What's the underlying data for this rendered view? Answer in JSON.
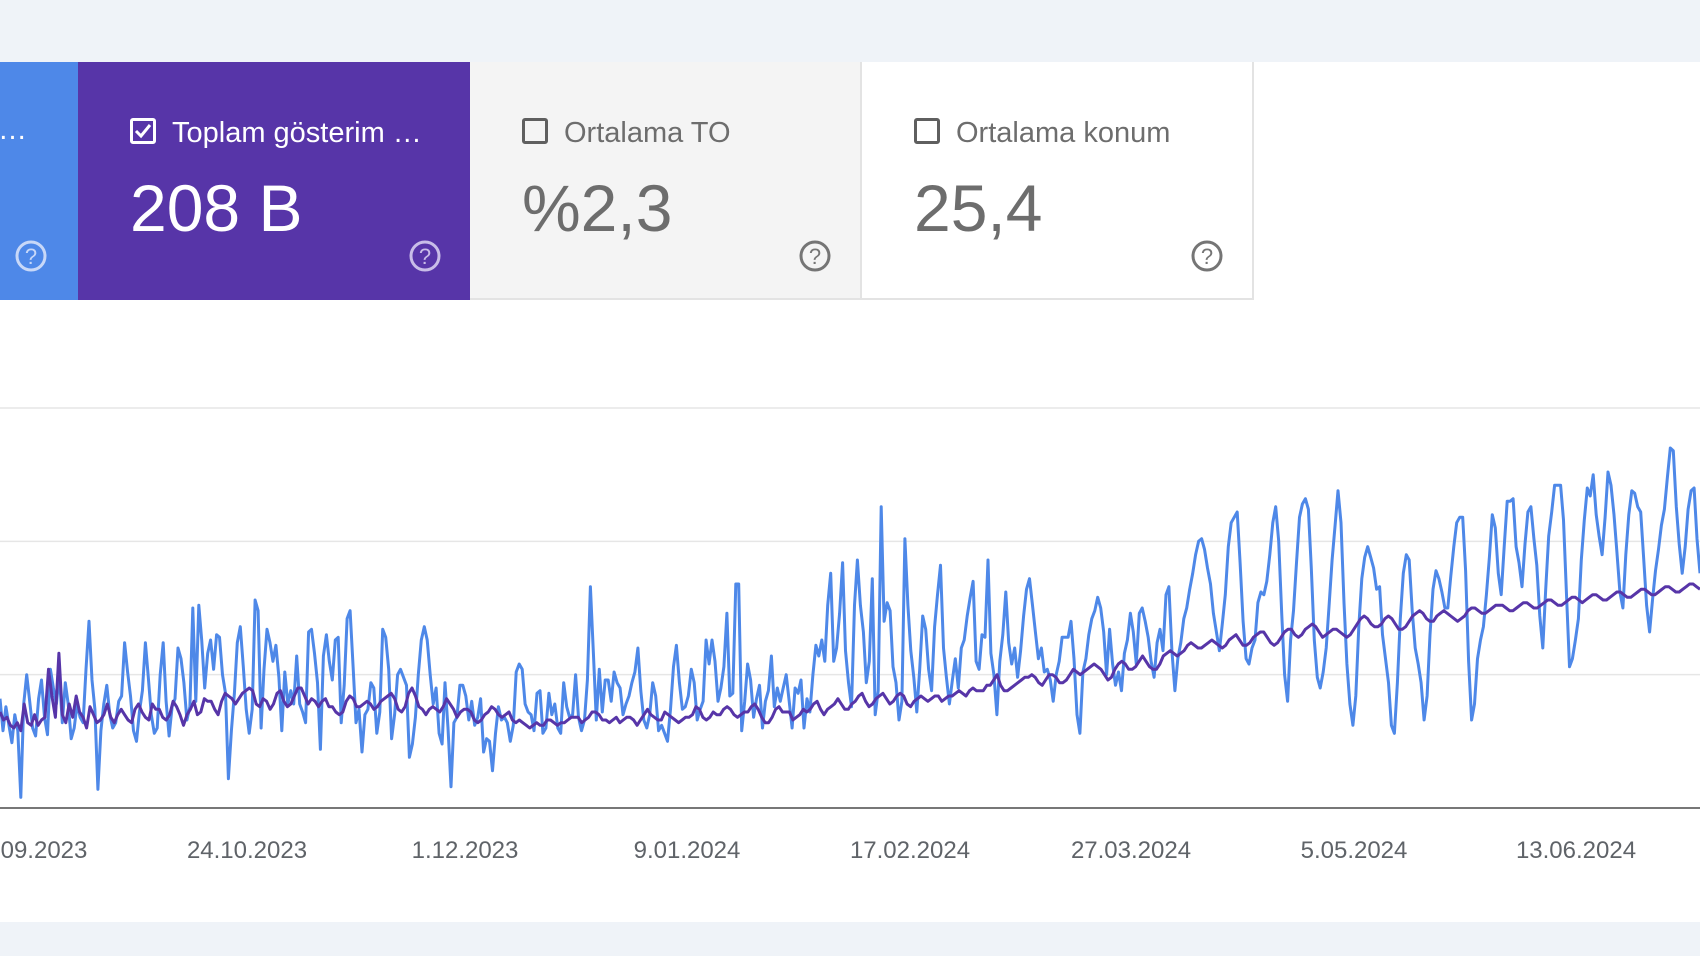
{
  "metrics": {
    "clicks": {
      "label": "…",
      "active": true,
      "color": "#4e88e8"
    },
    "impressions": {
      "label": "Toplam gösterim …",
      "value": "208 B",
      "checked": true,
      "color": "#5735a8"
    },
    "ctr": {
      "label": "Ortalama TO",
      "value": "%2,3",
      "checked": false
    },
    "position": {
      "label": "Ortalama konum",
      "value": "25,4",
      "checked": false
    }
  },
  "chart_data": {
    "type": "line",
    "x_tick_labels": [
      "09.2023",
      "24.10.2023",
      "1.12.2023",
      "9.01.2024",
      "17.02.2024",
      "27.03.2024",
      "5.05.2024",
      "13.06.2024"
    ],
    "y_range": [
      0,
      300
    ],
    "grid": true,
    "series": [
      {
        "color": "#4e88e8",
        "values": [
          82,
          58,
          76,
          62,
          49,
          70,
          58,
          8,
          78,
          100,
          80,
          60,
          54,
          82,
          96,
          68,
          55,
          104,
          90,
          78,
          100,
          64,
          94,
          78,
          52,
          60,
          78,
          68,
          64,
          104,
          140,
          96,
          74,
          14,
          58,
          78,
          92,
          70,
          60,
          64,
          80,
          84,
          124,
          102,
          84,
          58,
          50,
          72,
          88,
          124,
          98,
          70,
          56,
          60,
          100,
          124,
          80,
          54,
          76,
          82,
          120,
          112,
          94,
          66,
          76,
          150,
          80,
          152,
          126,
          90,
          116,
          126,
          104,
          130,
          128,
          100,
          86,
          22,
          58,
          86,
          124,
          136,
          106,
          74,
          56,
          74,
          156,
          148,
          60,
          104,
          134,
          124,
          110,
          122,
          98,
          58,
          102,
          78,
          88,
          78,
          114,
          78,
          72,
          64,
          132,
          134,
          116,
          94,
          44,
          114,
          130,
          110,
          96,
          126,
          128,
          64,
          92,
          142,
          148,
          106,
          64,
          74,
          42,
          70,
          74,
          94,
          90,
          56,
          72,
          134,
          128,
          104,
          52,
          70,
          100,
          104,
          98,
          92,
          38,
          48,
          68,
          100,
          126,
          136,
          126,
          100,
          78,
          90,
          56,
          48,
          94,
          60,
          16,
          64,
          68,
          92,
          92,
          84,
          66,
          80,
          62,
          68,
          82,
          42,
          52,
          50,
          28,
          56,
          76,
          66,
          68,
          64,
          50,
          62,
          102,
          108,
          104,
          78,
          72,
          70,
          58,
          86,
          88,
          56,
          60,
          86,
          70,
          78,
          60,
          56,
          94,
          76,
          68,
          70,
          100,
          68,
          58,
          66,
          96,
          166,
          116,
          66,
          104,
          72,
          96,
          96,
          80,
          102,
          94,
          90,
          70,
          78,
          84,
          94,
          102,
          120,
          88,
          66,
          60,
          70,
          94,
          84,
          58,
          62,
          56,
          50,
          74,
          106,
          122,
          94,
          74,
          76,
          84,
          104,
          94,
          66,
          74,
          80,
          126,
          108,
          126,
          110,
          80,
          90,
          106,
          146,
          84,
          86,
          168,
          168,
          58,
          80,
          108,
          96,
          68,
          82,
          92,
          60,
          80,
          88,
          114,
          76,
          90,
          80,
          90,
          100,
          80,
          60,
          90,
          86,
          96,
          60,
          82,
          72,
          100,
          122,
          114,
          126,
          110,
          152,
          176,
          110,
          120,
          146,
          184,
          118,
          94,
          76,
          152,
          186,
          152,
          132,
          94,
          110,
          172,
          70,
          88,
          226,
          140,
          154,
          148,
          106,
          94,
          66,
          80,
          202,
          152,
          118,
          98,
          72,
          104,
          144,
          134,
          104,
          88,
          136,
          160,
          182,
          120,
          98,
          78,
          96,
          112,
          90,
          120,
          126,
          144,
          158,
          170,
          110,
          104,
          130,
          128,
          186,
          116,
          100,
          70,
          110,
          130,
          162,
          124,
          108,
          120,
          98,
          118,
          144,
          164,
          172,
          152,
          132,
          112,
          120,
          102,
          104,
          96,
          80,
          100,
          110,
          128,
          128,
          128,
          140,
          112,
          70,
          56,
          102,
          112,
          130,
          142,
          148,
          158,
          150,
          132,
          100,
          134,
          108,
          92,
          102,
          88,
          116,
          126,
          146,
          132,
          108,
          146,
          150,
          140,
          128,
          110,
          98,
          124,
          134,
          118,
          160,
          166,
          118,
          88,
          112,
          124,
          142,
          150,
          164,
          176,
          190,
          200,
          202,
          194,
          180,
          168,
          146,
          132,
          118,
          138,
          160,
          196,
          214,
          218,
          222,
          184,
          140,
          112,
          108,
          120,
          126,
          154,
          162,
          160,
          170,
          190,
          214,
          226,
          200,
          146,
          100,
          80,
          126,
          148,
          184,
          218,
          228,
          232,
          224,
          180,
          126,
          98,
          90,
          102,
          120,
          152,
          186,
          212,
          238,
          214,
          154,
          108,
          78,
          62,
          84,
          136,
          172,
          188,
          196,
          188,
          180,
          164,
          166,
          130,
          112,
          94,
          62,
          56,
          94,
          142,
          176,
          190,
          186,
          148,
          120,
          108,
          94,
          66,
          84,
          130,
          164,
          178,
          172,
          162,
          150,
          150,
          174,
          196,
          214,
          218,
          218,
          178,
          110,
          66,
          78,
          112,
          126,
          136,
          160,
          188,
          220,
          210,
          176,
          160,
          196,
          230,
          230,
          232,
          196,
          184,
          166,
          198,
          222,
          226,
          202,
          182,
          144,
          120,
          164,
          204,
          222,
          242,
          242,
          242,
          216,
          160,
          106,
          112,
          126,
          142,
          186,
          216,
          240,
          234,
          250,
          220,
          204,
          190,
          218,
          252,
          242,
          220,
          192,
          162,
          150,
          190,
          220,
          238,
          236,
          226,
          222,
          188,
          152,
          132,
          156,
          178,
          194,
          212,
          224,
          248,
          270,
          268,
          226,
          198,
          176,
          196,
          224,
          238,
          240,
          202,
          176
        ]
      },
      {
        "color": "#5735a8",
        "values": [
          72,
          66,
          68,
          62,
          60,
          64,
          58,
          78,
          64,
          62,
          70,
          62,
          66,
          68,
          104,
          84,
          68,
          116,
          70,
          64,
          78,
          68,
          84,
          72,
          68,
          60,
          76,
          70,
          64,
          66,
          70,
          78,
          68,
          64,
          70,
          74,
          70,
          66,
          64,
          74,
          78,
          72,
          68,
          66,
          78,
          74,
          74,
          68,
          66,
          70,
          80,
          76,
          70,
          62,
          70,
          74,
          80,
          70,
          72,
          82,
          80,
          80,
          74,
          70,
          80,
          86,
          84,
          82,
          78,
          82,
          86,
          88,
          90,
          88,
          78,
          76,
          82,
          80,
          74,
          78,
          86,
          88,
          80,
          76,
          78,
          84,
          90,
          90,
          84,
          78,
          82,
          80,
          76,
          80,
          82,
          76,
          76,
          72,
          70,
          72,
          80,
          84,
          82,
          76,
          76,
          78,
          80,
          78,
          74,
          76,
          80,
          82,
          84,
          86,
          82,
          74,
          72,
          76,
          86,
          90,
          84,
          76,
          74,
          70,
          74,
          76,
          74,
          72,
          76,
          82,
          78,
          74,
          68,
          72,
          74,
          74,
          72,
          66,
          64,
          66,
          70,
          72,
          76,
          74,
          70,
          68,
          70,
          72,
          66,
          64,
          66,
          64,
          62,
          60,
          62,
          64,
          62,
          62,
          66,
          66,
          64,
          62,
          64,
          64,
          66,
          68,
          68,
          68,
          64,
          66,
          68,
          72,
          72,
          70,
          66,
          66,
          64,
          66,
          68,
          64,
          66,
          68,
          68,
          66,
          62,
          66,
          70,
          74,
          70,
          68,
          66,
          66,
          72,
          70,
          68,
          66,
          64,
          66,
          68,
          68,
          70,
          76,
          74,
          68,
          66,
          68,
          72,
          70,
          70,
          74,
          76,
          74,
          70,
          68,
          70,
          72,
          72,
          76,
          78,
          74,
          68,
          64,
          64,
          68,
          74,
          76,
          72,
          72,
          72,
          66,
          68,
          70,
          74,
          72,
          74,
          78,
          80,
          74,
          70,
          74,
          76,
          78,
          82,
          78,
          74,
          74,
          78,
          80,
          84,
          86,
          80,
          76,
          78,
          82,
          84,
          86,
          82,
          78,
          80,
          84,
          86,
          84,
          78,
          76,
          80,
          82,
          84,
          82,
          80,
          82,
          84,
          84,
          80,
          82,
          84,
          84,
          86,
          88,
          86,
          84,
          88,
          90,
          88,
          88,
          88,
          92,
          92,
          96,
          100,
          92,
          88,
          88,
          90,
          92,
          94,
          96,
          98,
          98,
          100,
          98,
          94,
          92,
          96,
          100,
          100,
          98,
          94,
          94,
          96,
          100,
          104,
          102,
          100,
          102,
          104,
          106,
          108,
          106,
          104,
          100,
          96,
          98,
          104,
          108,
          110,
          108,
          104,
          104,
          106,
          110,
          114,
          110,
          106,
          104,
          104,
          108,
          114,
          116,
          118,
          116,
          114,
          116,
          118,
          122,
          124,
          122,
          120,
          120,
          122,
          124,
          126,
          124,
          122,
          120,
          122,
          126,
          128,
          130,
          126,
          122,
          122,
          124,
          128,
          130,
          132,
          132,
          128,
          124,
          122,
          124,
          128,
          132,
          134,
          134,
          130,
          128,
          130,
          134,
          136,
          138,
          136,
          132,
          128,
          130,
          132,
          134,
          134,
          132,
          130,
          128,
          130,
          134,
          138,
          142,
          144,
          142,
          138,
          136,
          136,
          138,
          142,
          144,
          142,
          138,
          134,
          134,
          136,
          140,
          144,
          146,
          148,
          146,
          142,
          140,
          140,
          144,
          146,
          148,
          146,
          144,
          142,
          140,
          142,
          144,
          148,
          150,
          150,
          148,
          146,
          146,
          148,
          150,
          152,
          152,
          152,
          150,
          148,
          148,
          150,
          152,
          154,
          154,
          152,
          150,
          150,
          152,
          154,
          156,
          156,
          154,
          152,
          152,
          154,
          156,
          158,
          158,
          156,
          154,
          156,
          158,
          160,
          160,
          158,
          156,
          156,
          158,
          160,
          162,
          162,
          160,
          158,
          158,
          160,
          162,
          164,
          164,
          162,
          160,
          160,
          162,
          164,
          166,
          166,
          164,
          162,
          162,
          164,
          166,
          168,
          168,
          166,
          164
        ]
      }
    ]
  }
}
